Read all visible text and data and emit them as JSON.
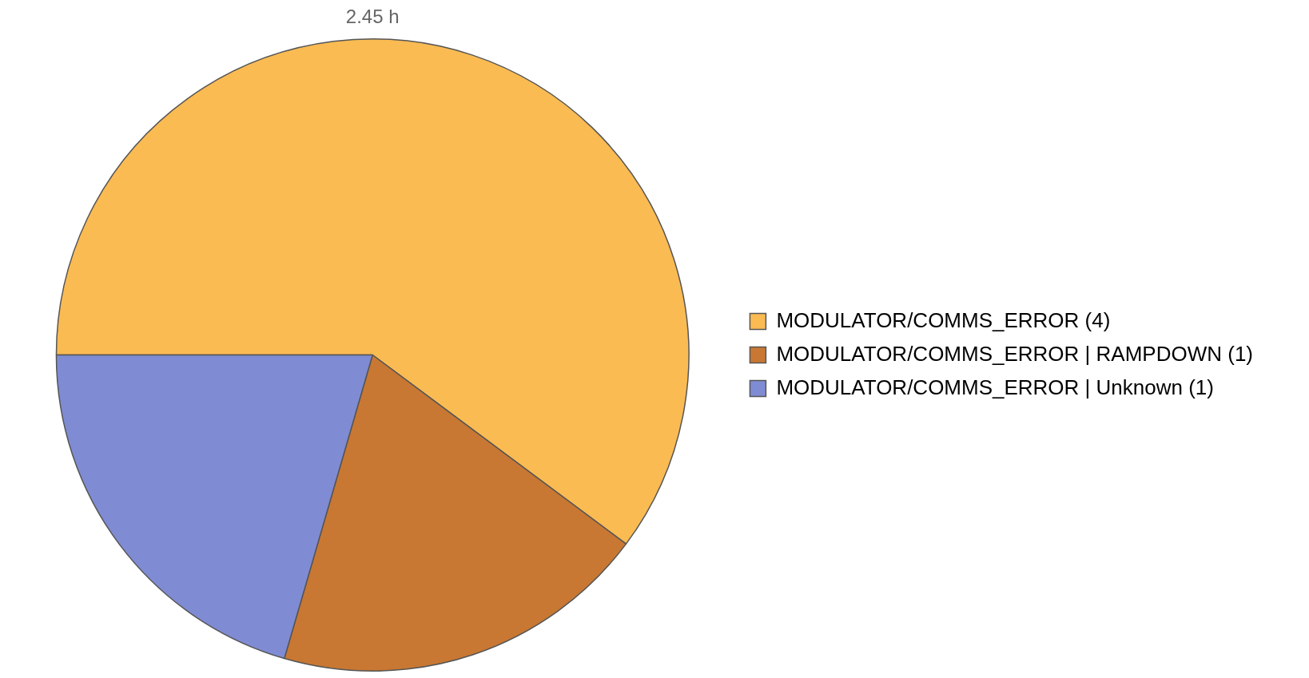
{
  "chart_data": {
    "type": "pie",
    "title": "2.45 h",
    "categories": [
      "MODULATOR/COMMS_ERROR (4)",
      "MODULATOR/COMMS_ERROR | RAMPDOWN (1)",
      "MODULATOR/COMMS_ERROR | Unknown (1)"
    ],
    "values": [
      60.2,
      19.3,
      20.5
    ],
    "colors": [
      "#fabb53",
      "#c87833",
      "#7f8cd3"
    ],
    "legend": "right"
  }
}
